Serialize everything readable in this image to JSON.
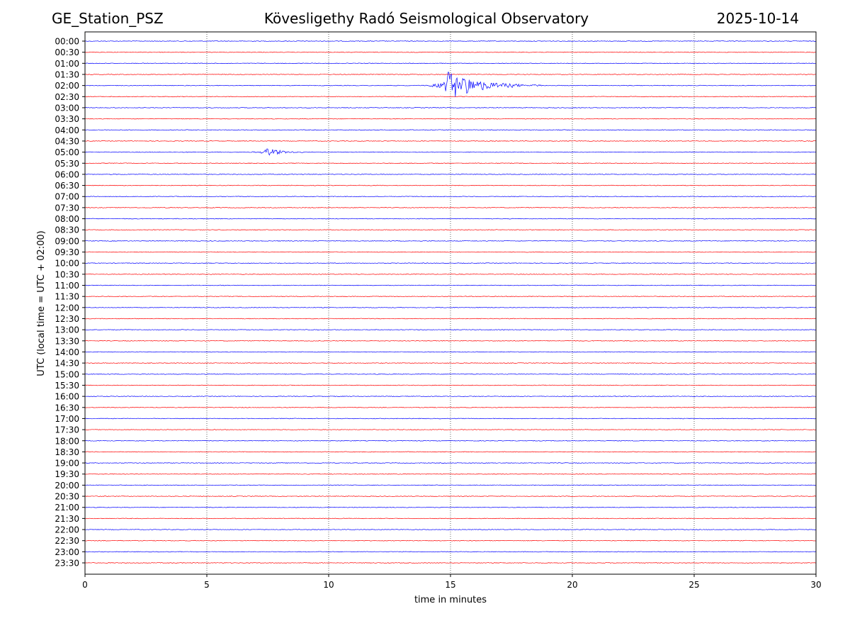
{
  "header": {
    "station": "GE_Station_PSZ",
    "title": "Kövesligethy Radó Seismological Observatory",
    "date": "2025-10-14"
  },
  "chart_data": {
    "type": "line",
    "title": "Kövesligethy Radó Seismological Observatory",
    "xlabel": "time in minutes",
    "ylabel": "UTC (local time = UTC + 02:00)",
    "xlim": [
      0,
      30
    ],
    "xticks": [
      0,
      5,
      10,
      15,
      20,
      25,
      30
    ],
    "grid_x": [
      5,
      10,
      15,
      20,
      25
    ],
    "trace_colors": [
      "#0000ff",
      "#ff0000"
    ],
    "rows": [
      "00:00",
      "00:30",
      "01:00",
      "01:30",
      "02:00",
      "02:30",
      "03:00",
      "03:30",
      "04:00",
      "04:30",
      "05:00",
      "05:30",
      "06:00",
      "06:30",
      "07:00",
      "07:30",
      "08:00",
      "08:30",
      "09:00",
      "09:30",
      "10:00",
      "10:30",
      "11:00",
      "11:30",
      "12:00",
      "12:30",
      "13:00",
      "13:30",
      "14:00",
      "14:30",
      "15:00",
      "15:30",
      "16:00",
      "16:30",
      "17:00",
      "17:30",
      "18:00",
      "18:30",
      "19:00",
      "19:30",
      "20:00",
      "20:30",
      "21:00",
      "21:30",
      "22:00",
      "22:30",
      "23:00",
      "23:30"
    ],
    "events": [
      {
        "row": "02:00",
        "start_min": 13.6,
        "peak_min": 14.8,
        "end_min": 18.8,
        "peak_amplitude": 1.0
      },
      {
        "row": "05:00",
        "start_min": 6.3,
        "peak_min": 7.4,
        "end_min": 9.0,
        "peak_amplitude": 0.35
      }
    ]
  }
}
